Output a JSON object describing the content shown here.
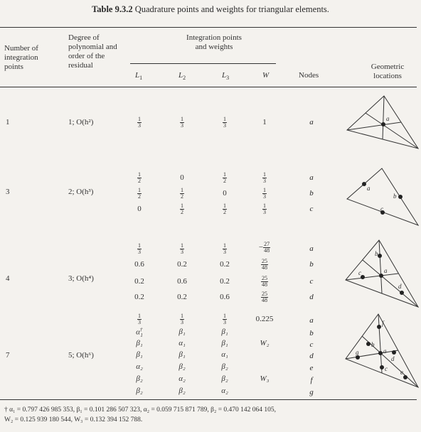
{
  "title_label": "Table 9.3.2",
  "title_text": "Quadrature points and weights for triangular elements.",
  "headers": {
    "col1": [
      "Number of",
      "integration",
      "points"
    ],
    "col2": [
      "Degree of",
      "polynomial and",
      "order of the",
      "residual"
    ],
    "group": [
      "Integration points",
      "and weights"
    ],
    "L1": "L",
    "L1_sub": "1",
    "L2": "L",
    "L2_sub": "2",
    "L3": "L",
    "L3_sub": "3",
    "W": "W",
    "nodes": "Nodes",
    "geo": [
      "Geometric",
      "locations"
    ]
  },
  "rows": [
    {
      "points": "1",
      "degree": "1; O(h²)",
      "nodes": [
        "a"
      ]
    },
    {
      "points": "3",
      "degree": "2; O(h³)",
      "nodes": [
        "a",
        "b",
        "c"
      ]
    },
    {
      "points": "4",
      "degree": "3; O(h⁴)",
      "nodes": [
        "a",
        "b",
        "c",
        "d"
      ]
    },
    {
      "points": "7",
      "degree": "5; O(h⁶)",
      "nodes": [
        "a",
        "b",
        "c",
        "d",
        "e",
        "f",
        "g"
      ]
    }
  ],
  "values": {
    "one_third": [
      "1",
      "3"
    ],
    "half": [
      "1",
      "2"
    ],
    "zero": "0",
    "one": "1",
    "r4": [
      [
        "0.6",
        "0.2",
        "0.2"
      ],
      [
        "0.2",
        "0.6",
        "0.2"
      ],
      [
        "0.2",
        "0.2",
        "0.6"
      ]
    ],
    "w4a": [
      "27",
      "48"
    ],
    "w4b": [
      "25",
      "48"
    ],
    "w7a": "0.225",
    "W2": "W₂",
    "W3": "W₃",
    "r7": [
      [
        "α₁",
        "β₁",
        "β₁"
      ],
      [
        "β₁",
        "α₁",
        "β₁"
      ],
      [
        "β₁",
        "β₁",
        "α₁"
      ],
      [
        "α₂",
        "β₂",
        "β₂"
      ],
      [
        "β₂",
        "α₂",
        "β₂"
      ],
      [
        "β₂",
        "β₂",
        "α₂"
      ]
    ],
    "alpha_dagger": "α",
    "dagger_mark": "†",
    "sub1": "1"
  },
  "footnote": {
    "line1": "† α₁ = 0.797 426 985 353,  β₁ = 0.101 286 507 323,  α₂ = 0.059 715 871 789,  β₂ = 0.470 142 064 105,",
    "line2": "W₂ = 0.125 939 180 544,  W₃ = 0.132 394 152 788."
  }
}
